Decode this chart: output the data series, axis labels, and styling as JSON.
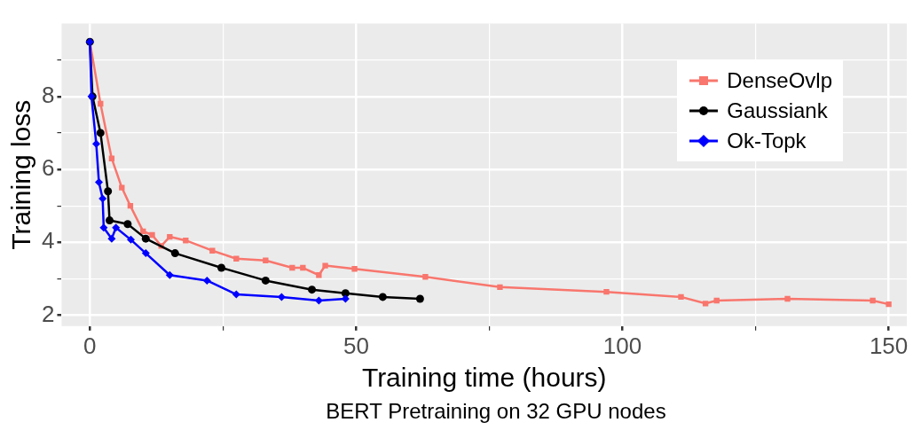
{
  "chart_data": {
    "type": "line",
    "xlabel": "Training time (hours)",
    "ylabel": "Training loss",
    "annotations": [
      "BERT Pretraining on 32 GPU nodes"
    ],
    "xlim": [
      -5.3,
      153.4
    ],
    "ylim": [
      1.7,
      10
    ],
    "xticks": [
      0,
      {
        "value": 25,
        "label": null
      },
      50,
      {
        "value": 75,
        "label": null
      },
      100,
      {
        "value": 125,
        "label": null
      },
      150
    ],
    "yticks": [
      2,
      {
        "value": 3,
        "label": null
      },
      4,
      {
        "value": 5,
        "label": null
      },
      6,
      {
        "value": 7,
        "label": null
      },
      8,
      {
        "value": 9,
        "label": null
      }
    ],
    "grid": true,
    "legend": "top right",
    "line_style": "solid",
    "series": [
      {
        "name": "DenseOvlp",
        "color": "#f8766d",
        "marker": "square",
        "x": [
          0,
          2,
          4.1,
          6,
          7.6,
          10,
          11.7,
          13.4,
          15,
          18,
          23,
          27.5,
          33,
          38,
          40,
          43,
          44.2,
          49.7,
          63,
          77,
          97,
          111,
          115.6,
          117.7,
          131,
          147,
          150
        ],
        "values": [
          9.5,
          7.8,
          6.3,
          5.5,
          5,
          4.3,
          4.2,
          3.9,
          4.15,
          4.05,
          3.77,
          3.55,
          3.5,
          3.3,
          3.3,
          3.1,
          3.36,
          3.27,
          3.05,
          2.77,
          2.64,
          2.5,
          2.32,
          2.4,
          2.45,
          2.4,
          2.3
        ]
      },
      {
        "name": "Gaussiank",
        "color": "#000000",
        "marker": "circle",
        "x": [
          0,
          0.5,
          2,
          3.4,
          3.7,
          7.1,
          10.5,
          16,
          24.7,
          33,
          41.7,
          48,
          55,
          62
        ],
        "values": [
          9.5,
          8,
          7,
          5.4,
          4.6,
          4.5,
          4.1,
          3.7,
          3.3,
          2.95,
          2.7,
          2.6,
          2.5,
          2.45
        ]
      },
      {
        "name": "Ok-Topk",
        "color": "#0000ff",
        "marker": "diamond",
        "x": [
          0,
          0.3,
          1.2,
          1.7,
          2.4,
          2.6,
          4.1,
          4.9,
          7.7,
          10.5,
          15,
          22,
          27.5,
          36,
          43,
          48
        ],
        "values": [
          9.5,
          8,
          6.7,
          5.65,
          5.2,
          4.4,
          4.1,
          4.4,
          4.07,
          3.7,
          3.1,
          2.95,
          2.57,
          2.5,
          2.4,
          2.45
        ]
      }
    ]
  }
}
